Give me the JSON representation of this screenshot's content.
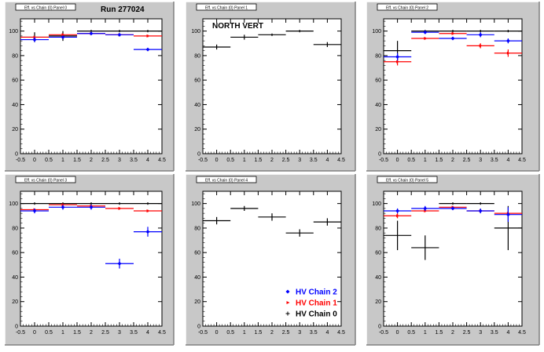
{
  "page": {
    "run_label": "Run 277024",
    "pad_title_overlay": "NORTH VERT"
  },
  "colors": {
    "pad_fill": "#c8c8c8",
    "frame_fill": "#ffffff",
    "hv0": "#000000",
    "hv1": "#ff0000",
    "hv2": "#0000ff",
    "title_box": "#ffffff"
  },
  "chart_data": [
    {
      "type": "scatter",
      "title": "Eff. vs Chain (0) Panel 0",
      "xlim": [
        -0.5,
        4.5
      ],
      "ylim": [
        0,
        110
      ],
      "x_ticks": [
        "-0.5",
        "0",
        "0.5",
        "1",
        "1.5",
        "2",
        "2.5",
        "3",
        "3.5",
        "4",
        "4.5"
      ],
      "y_ticks": [
        "0",
        "20",
        "40",
        "60",
        "80",
        "100"
      ],
      "series": [
        {
          "color_key": "hv0",
          "points": [
            {
              "x": 0,
              "y": 95,
              "ey": 4
            },
            {
              "x": 1,
              "y": 96,
              "ey": 4
            },
            {
              "x": 2,
              "y": 100,
              "ey": 1
            },
            {
              "x": 3,
              "y": 100,
              "ey": 1
            },
            {
              "x": 4,
              "y": 100,
              "ey": 1
            }
          ]
        },
        {
          "color_key": "hv1",
          "points": [
            {
              "x": 0,
              "y": 95,
              "ey": 1
            },
            {
              "x": 1,
              "y": 97,
              "ey": 1
            },
            {
              "x": 2,
              "y": 98,
              "ey": 1
            },
            {
              "x": 3,
              "y": 97,
              "ey": 1
            },
            {
              "x": 4,
              "y": 96,
              "ey": 1
            }
          ]
        },
        {
          "color_key": "hv2",
          "points": [
            {
              "x": 0,
              "y": 93,
              "ey": 2
            },
            {
              "x": 1,
              "y": 95,
              "ey": 1
            },
            {
              "x": 2,
              "y": 98,
              "ey": 1
            },
            {
              "x": 3,
              "y": 97,
              "ey": 1
            },
            {
              "x": 4,
              "y": 85,
              "ey": 1
            }
          ]
        }
      ]
    },
    {
      "type": "scatter",
      "title": "Eff. vs Chain (0) Panel 1",
      "xlim": [
        -0.5,
        4.5
      ],
      "ylim": [
        0,
        110
      ],
      "x_ticks": [
        "-0.5",
        "0",
        "0.5",
        "1",
        "1.5",
        "2",
        "2.5",
        "3",
        "3.5",
        "4",
        "4.5"
      ],
      "y_ticks": [
        "0",
        "20",
        "40",
        "60",
        "80",
        "100"
      ],
      "series": [
        {
          "color_key": "hv0",
          "points": [
            {
              "x": 0,
              "y": 87,
              "ey": 2
            },
            {
              "x": 1,
              "y": 95,
              "ey": 2
            },
            {
              "x": 2,
              "y": 97,
              "ey": 1
            },
            {
              "x": 3,
              "y": 100,
              "ey": 1
            },
            {
              "x": 4,
              "y": 89,
              "ey": 2
            }
          ]
        }
      ]
    },
    {
      "type": "scatter",
      "title": "Eff. vs Chain (0) Panel 2",
      "xlim": [
        -0.5,
        4.5
      ],
      "ylim": [
        0,
        110
      ],
      "x_ticks": [
        "-0.5",
        "0",
        "0.5",
        "1",
        "1.5",
        "2",
        "2.5",
        "3",
        "3.5",
        "4",
        "4.5"
      ],
      "y_ticks": [
        "0",
        "20",
        "40",
        "60",
        "80",
        "100"
      ],
      "series": [
        {
          "color_key": "hv0",
          "points": [
            {
              "x": 0,
              "y": 84,
              "ey": 8
            },
            {
              "x": 1,
              "y": 100,
              "ey": 1
            },
            {
              "x": 2,
              "y": 100,
              "ey": 1
            },
            {
              "x": 3,
              "y": 100,
              "ey": 1
            },
            {
              "x": 4,
              "y": 100,
              "ey": 1
            }
          ]
        },
        {
          "color_key": "hv1",
          "points": [
            {
              "x": 0,
              "y": 75,
              "ey": 3
            },
            {
              "x": 1,
              "y": 94,
              "ey": 1
            },
            {
              "x": 2,
              "y": 98,
              "ey": 1
            },
            {
              "x": 3,
              "y": 88,
              "ey": 2
            },
            {
              "x": 4,
              "y": 82,
              "ey": 3
            }
          ]
        },
        {
          "color_key": "hv2",
          "points": [
            {
              "x": 0,
              "y": 79,
              "ey": 3
            },
            {
              "x": 1,
              "y": 99,
              "ey": 1
            },
            {
              "x": 2,
              "y": 94,
              "ey": 1
            },
            {
              "x": 3,
              "y": 97,
              "ey": 2
            },
            {
              "x": 4,
              "y": 92,
              "ey": 2
            }
          ]
        }
      ]
    },
    {
      "type": "scatter",
      "title": "Eff. vs Chain (0) Panel 3",
      "xlim": [
        -0.5,
        4.5
      ],
      "ylim": [
        0,
        110
      ],
      "x_ticks": [
        "-0.5",
        "0",
        "0.5",
        "1",
        "1.5",
        "2",
        "2.5",
        "3",
        "3.5",
        "4",
        "4.5"
      ],
      "y_ticks": [
        "0",
        "20",
        "40",
        "60",
        "80",
        "100"
      ],
      "series": [
        {
          "color_key": "hv0",
          "points": [
            {
              "x": 0,
              "y": 100,
              "ey": 1
            },
            {
              "x": 1,
              "y": 100,
              "ey": 1
            },
            {
              "x": 2,
              "y": 100,
              "ey": 1
            },
            {
              "x": 3,
              "y": 100,
              "ey": 1
            },
            {
              "x": 4,
              "y": 100,
              "ey": 1
            }
          ]
        },
        {
          "color_key": "hv1",
          "points": [
            {
              "x": 0,
              "y": 95,
              "ey": 1
            },
            {
              "x": 1,
              "y": 99,
              "ey": 1
            },
            {
              "x": 2,
              "y": 98,
              "ey": 1
            },
            {
              "x": 3,
              "y": 96,
              "ey": 1
            },
            {
              "x": 4,
              "y": 94,
              "ey": 1
            }
          ]
        },
        {
          "color_key": "hv2",
          "points": [
            {
              "x": 0,
              "y": 94,
              "ey": 2
            },
            {
              "x": 1,
              "y": 97,
              "ey": 2
            },
            {
              "x": 2,
              "y": 97,
              "ey": 2
            },
            {
              "x": 3,
              "y": 51,
              "ey": 4
            },
            {
              "x": 4,
              "y": 77,
              "ey": 4
            }
          ]
        }
      ]
    },
    {
      "type": "scatter",
      "title": "Eff. vs Chain (0) Panel 4",
      "xlim": [
        -0.5,
        4.5
      ],
      "ylim": [
        0,
        110
      ],
      "x_ticks": [
        "-0.5",
        "0",
        "0.5",
        "1",
        "1.5",
        "2",
        "2.5",
        "3",
        "3.5",
        "4",
        "4.5"
      ],
      "y_ticks": [
        "0",
        "20",
        "40",
        "60",
        "80",
        "100"
      ],
      "series": [
        {
          "color_key": "hv0",
          "points": [
            {
              "x": 0,
              "y": 86,
              "ey": 3
            },
            {
              "x": 1,
              "y": 96,
              "ey": 2
            },
            {
              "x": 2,
              "y": 89,
              "ey": 3
            },
            {
              "x": 3,
              "y": 76,
              "ey": 3
            },
            {
              "x": 4,
              "y": 85,
              "ey": 3
            }
          ]
        }
      ],
      "legend": {
        "placement": "bottom-right",
        "entries": [
          {
            "label": "HV Chain 2",
            "color_key": "hv2",
            "marker": "diamond"
          },
          {
            "label": "HV Chain 1",
            "color_key": "hv1",
            "marker": "arrow"
          },
          {
            "label": "HV Chain 0",
            "color_key": "hv0",
            "marker": "cross"
          }
        ]
      }
    },
    {
      "type": "scatter",
      "title": "Eff. vs Chain (0) Panel 5",
      "xlim": [
        -0.5,
        4.5
      ],
      "ylim": [
        0,
        110
      ],
      "x_ticks": [
        "-0.5",
        "0",
        "0.5",
        "1",
        "1.5",
        "2",
        "2.5",
        "3",
        "3.5",
        "4",
        "4.5"
      ],
      "y_ticks": [
        "0",
        "20",
        "40",
        "60",
        "80",
        "100"
      ],
      "series": [
        {
          "color_key": "hv0",
          "points": [
            {
              "x": 0,
              "y": 74,
              "ey": 12
            },
            {
              "x": 1,
              "y": 64,
              "ey": 10
            },
            {
              "x": 2,
              "y": 100,
              "ey": 1
            },
            {
              "x": 3,
              "y": 100,
              "ey": 1
            },
            {
              "x": 4,
              "y": 80,
              "ey": 18
            }
          ]
        },
        {
          "color_key": "hv1",
          "points": [
            {
              "x": 0,
              "y": 90,
              "ey": 2
            },
            {
              "x": 1,
              "y": 94,
              "ey": 1
            },
            {
              "x": 2,
              "y": 97,
              "ey": 1
            },
            {
              "x": 3,
              "y": 94,
              "ey": 1
            },
            {
              "x": 4,
              "y": 92,
              "ey": 1
            }
          ]
        },
        {
          "color_key": "hv2",
          "points": [
            {
              "x": 0,
              "y": 94,
              "ey": 2
            },
            {
              "x": 1,
              "y": 96,
              "ey": 2
            },
            {
              "x": 2,
              "y": 96,
              "ey": 1
            },
            {
              "x": 3,
              "y": 94,
              "ey": 2
            },
            {
              "x": 4,
              "y": 91,
              "ey": 6
            }
          ]
        }
      ]
    }
  ]
}
